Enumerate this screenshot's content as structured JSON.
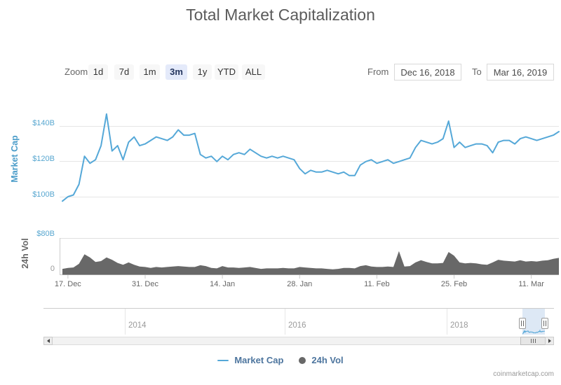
{
  "title": "Total Market Capitalization",
  "toolbar": {
    "zoom_label": "Zoom",
    "zoom_buttons": [
      {
        "label": "1d",
        "selected": false
      },
      {
        "label": "7d",
        "selected": false
      },
      {
        "label": "1m",
        "selected": false
      },
      {
        "label": "3m",
        "selected": true
      },
      {
        "label": "1y",
        "selected": false
      },
      {
        "label": "YTD",
        "selected": false
      },
      {
        "label": "ALL",
        "selected": false
      }
    ],
    "from_label": "From",
    "from_value": "Dec 16, 2018",
    "to_label": "To",
    "to_value": "Mar 16, 2019"
  },
  "legend": {
    "market_cap_label": "Market Cap",
    "volume_label": "24h Vol"
  },
  "credit": "coinmarketcap.com",
  "colors": {
    "market_cap_line": "#55a8d8",
    "volume_fill": "#686868",
    "axis_label_blue": "#58a7d0",
    "grid": "#e6e6e6",
    "legend_text": "#4d759e",
    "selected_button_bg": "#e4eafa",
    "navigator_mask": "#bcd2ec"
  },
  "chart_data": {
    "type": "line",
    "title": "Total Market Capitalization",
    "frequency": "daily",
    "start_date": "2018-12-16",
    "end_date": "2019-03-16",
    "x_tick_labels": [
      "17. Dec",
      "31. Dec",
      "14. Jan",
      "28. Jan",
      "11. Feb",
      "25. Feb",
      "11. Mar"
    ],
    "x_tick_day_indices": [
      1,
      15,
      29,
      43,
      57,
      71,
      85
    ],
    "market_cap_axis": {
      "title": "Market Cap",
      "tick_labels": [
        "$140B",
        "$120B",
        "$100B"
      ],
      "tick_values": [
        140,
        120,
        100
      ],
      "unit": "USD billions"
    },
    "volume_axis": {
      "title": "24h Vol",
      "tick_labels": [
        "$80B",
        "0"
      ],
      "tick_values": [
        80,
        0
      ],
      "unit": "USD billions"
    },
    "navigator": {
      "year_labels": [
        "2014",
        "2016",
        "2018"
      ]
    },
    "series": [
      {
        "name": "Market Cap",
        "type": "line",
        "unit": "USD billions",
        "values": [
          97.5,
          100,
          101,
          107,
          123,
          119,
          121,
          129,
          147,
          126,
          129,
          121,
          131,
          134,
          129,
          130,
          132,
          134,
          133,
          132,
          134,
          138,
          135,
          135,
          136,
          124,
          122,
          123,
          120,
          123,
          121,
          124,
          125,
          124,
          127,
          125,
          123,
          122,
          123,
          122,
          123,
          122,
          121,
          116,
          113,
          115,
          114,
          114,
          115,
          114,
          113,
          114,
          112,
          112,
          118,
          120,
          121,
          119,
          120,
          121,
          119,
          120,
          121,
          122,
          128,
          132,
          131,
          130,
          131,
          133,
          143,
          128,
          131,
          128,
          129,
          130,
          130,
          129,
          125,
          131,
          132,
          132,
          130,
          133,
          134,
          133,
          132,
          133,
          134,
          135,
          137
        ]
      },
      {
        "name": "24h Vol",
        "type": "column",
        "unit": "USD billions",
        "values": [
          13,
          15,
          16,
          24,
          45,
          38,
          28,
          30,
          38,
          33,
          26,
          22,
          27,
          22,
          18,
          17,
          15,
          17,
          16,
          17,
          18,
          19,
          18,
          17,
          17,
          21,
          19,
          15,
          14,
          19,
          16,
          16,
          15,
          16,
          17,
          15,
          13,
          14,
          14,
          14,
          15,
          14,
          14,
          17,
          16,
          15,
          14,
          14,
          13,
          12,
          13,
          15,
          15,
          14,
          19,
          21,
          18,
          17,
          17,
          18,
          17,
          52,
          18,
          19,
          27,
          32,
          28,
          25,
          25,
          26,
          50,
          42,
          27,
          25,
          26,
          25,
          23,
          22,
          27,
          33,
          31,
          30,
          29,
          32,
          29,
          30,
          29,
          31,
          32,
          35,
          37
        ]
      }
    ]
  }
}
